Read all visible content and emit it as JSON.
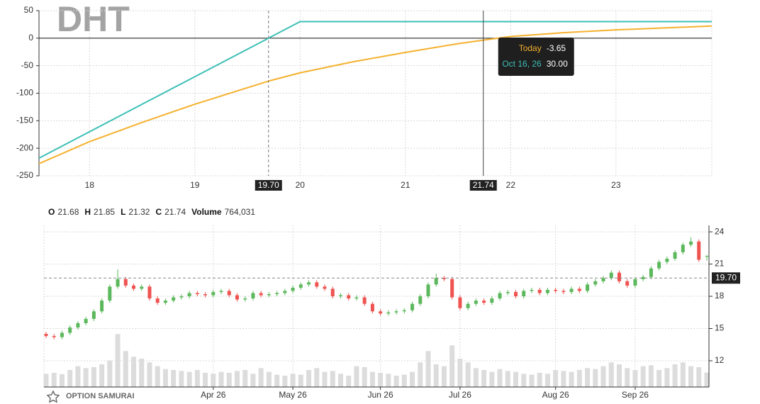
{
  "chart_data": [
    {
      "type": "line",
      "title": "DHT",
      "x": [
        17.52,
        18,
        18.5,
        19,
        19.7,
        20,
        20.5,
        21,
        21.5,
        21.74,
        22,
        22.5,
        23,
        23.5,
        23.91
      ],
      "series": [
        {
          "name": "Today",
          "color": "#f5b12e",
          "values": [
            -228,
            -188,
            -153,
            -120,
            -78,
            -63,
            -43,
            -26,
            -10,
            -3.65,
            3,
            10,
            15,
            19,
            22
          ]
        },
        {
          "name": "Oct 16, 26",
          "color": "#3dbfb6",
          "values": [
            -218,
            -170,
            -120,
            -70,
            0,
            30,
            30,
            30,
            30,
            30,
            30,
            30,
            30,
            30,
            30
          ]
        }
      ],
      "xlim": [
        17.52,
        23.91
      ],
      "ylim": [
        -250,
        50
      ],
      "xticks": [
        18,
        19,
        20,
        21,
        22,
        23
      ],
      "yticks": [
        50,
        0,
        -50,
        -100,
        -150,
        -200,
        -250
      ],
      "grid": true,
      "markers": [
        {
          "value": 19.7,
          "label": "19.70",
          "style": "dashed"
        },
        {
          "value": 21.74,
          "label": "21.74",
          "style": "solid"
        }
      ],
      "tooltip": [
        {
          "value": -3.65,
          "label": "-3.65"
        },
        {
          "value": 30,
          "label": "30.00"
        }
      ]
    },
    {
      "type": "candlestick",
      "readout": [
        {
          "label": "O",
          "value": 21.68
        },
        {
          "label": "H",
          "value": 21.85
        },
        {
          "label": "L",
          "value": 21.32
        },
        {
          "label": "C",
          "value": 21.74
        },
        {
          "label": "Volume",
          "value": "764,031"
        }
      ],
      "categories": [
        null,
        null,
        null,
        null,
        null,
        null,
        null,
        null,
        null,
        null,
        null,
        null,
        null,
        null,
        null,
        null,
        null,
        null,
        null,
        null,
        null,
        "Apr 26",
        null,
        null,
        null,
        null,
        null,
        null,
        null,
        null,
        null,
        "May 26",
        null,
        null,
        null,
        null,
        null,
        null,
        null,
        null,
        null,
        null,
        "Jun 26",
        null,
        null,
        null,
        null,
        null,
        null,
        null,
        null,
        null,
        "Jul 26",
        null,
        null,
        null,
        null,
        null,
        null,
        null,
        null,
        null,
        null,
        null,
        "Aug 26",
        null,
        null,
        null,
        null,
        null,
        null,
        null,
        null,
        null,
        "Sep 26",
        null,
        null,
        null,
        null,
        null,
        null,
        null,
        null,
        null
      ],
      "open": [
        14.5,
        14.3,
        14.2,
        14.6,
        15.1,
        15.5,
        15.9,
        16.6,
        17.6,
        18.9,
        19.6,
        19.0,
        18.7,
        18.9,
        17.8,
        17.4,
        17.6,
        17.9,
        18.0,
        18.3,
        18.2,
        18.1,
        18.4,
        18.5,
        18.1,
        17.7,
        17.8,
        18.3,
        18.1,
        18.2,
        18.3,
        18.5,
        18.8,
        19.1,
        19.3,
        18.9,
        18.7,
        18.0,
        18.1,
        17.8,
        17.9,
        17.3,
        16.6,
        16.4,
        16.5,
        16.6,
        16.7,
        17.3,
        18.0,
        19.1,
        19.7,
        19.6,
        17.9,
        16.9,
        17.3,
        17.6,
        17.4,
        17.8,
        18.3,
        18.4,
        18.0,
        18.5,
        18.6,
        18.3,
        18.6,
        18.5,
        18.4,
        18.7,
        18.5,
        19.1,
        19.4,
        19.7,
        20.2,
        19.4,
        19.0,
        19.6,
        19.8,
        20.6,
        21.2,
        21.5,
        22.1,
        22.8,
        23.1,
        21.68
      ],
      "high": [
        14.7,
        14.5,
        14.8,
        15.3,
        15.7,
        16.1,
        16.8,
        17.8,
        19.1,
        20.5,
        19.8,
        19.2,
        19.1,
        19.1,
        18.0,
        17.8,
        18.1,
        18.2,
        18.5,
        18.5,
        18.4,
        18.6,
        18.7,
        18.7,
        18.3,
        18.0,
        18.5,
        18.5,
        18.4,
        18.5,
        18.7,
        19.0,
        19.3,
        19.5,
        19.5,
        19.1,
        18.9,
        18.3,
        18.3,
        18.1,
        18.1,
        17.5,
        16.8,
        16.7,
        16.8,
        16.9,
        17.5,
        18.2,
        19.3,
        20.1,
        19.9,
        19.8,
        18.1,
        17.5,
        17.8,
        17.8,
        18.0,
        18.5,
        18.6,
        18.6,
        18.7,
        18.8,
        18.8,
        18.8,
        18.8,
        18.7,
        18.9,
        18.9,
        19.3,
        19.6,
        19.9,
        20.4,
        20.4,
        19.6,
        19.8,
        20.0,
        20.8,
        21.4,
        21.7,
        22.3,
        23.0,
        23.5,
        23.3,
        21.85
      ],
      "low": [
        14.1,
        14.0,
        14.0,
        14.4,
        14.9,
        15.3,
        15.7,
        16.4,
        17.4,
        18.7,
        18.8,
        18.5,
        18.5,
        17.6,
        17.2,
        17.2,
        17.4,
        17.7,
        17.8,
        18.0,
        17.9,
        17.9,
        18.2,
        17.9,
        17.5,
        17.5,
        17.6,
        17.9,
        17.9,
        18.0,
        18.1,
        18.3,
        18.6,
        18.9,
        18.7,
        18.5,
        17.8,
        17.8,
        17.6,
        17.6,
        17.1,
        16.4,
        16.2,
        16.2,
        16.3,
        16.4,
        16.5,
        17.1,
        17.8,
        18.9,
        19.4,
        17.7,
        16.7,
        16.7,
        17.1,
        17.2,
        17.2,
        17.6,
        18.1,
        17.8,
        17.8,
        18.3,
        18.1,
        18.1,
        18.3,
        18.2,
        18.2,
        18.3,
        18.3,
        18.9,
        19.2,
        19.5,
        19.2,
        18.8,
        18.8,
        19.4,
        19.6,
        20.4,
        21.0,
        21.3,
        21.9,
        22.6,
        21.2,
        21.32
      ],
      "close": [
        14.3,
        14.2,
        14.6,
        15.1,
        15.5,
        15.9,
        16.6,
        17.6,
        18.9,
        19.6,
        19.0,
        18.7,
        18.9,
        17.8,
        17.4,
        17.6,
        17.9,
        18.0,
        18.3,
        18.2,
        18.1,
        18.4,
        18.5,
        18.1,
        17.7,
        17.8,
        18.3,
        18.1,
        18.2,
        18.3,
        18.5,
        18.8,
        19.1,
        19.3,
        18.9,
        18.7,
        18.0,
        18.1,
        17.8,
        17.9,
        17.3,
        16.6,
        16.4,
        16.5,
        16.6,
        16.7,
        17.3,
        18.0,
        19.1,
        19.7,
        19.6,
        17.9,
        16.9,
        17.3,
        17.6,
        17.4,
        17.8,
        18.3,
        18.4,
        18.0,
        18.5,
        18.6,
        18.3,
        18.6,
        18.5,
        18.4,
        18.7,
        18.5,
        19.1,
        19.4,
        19.7,
        20.2,
        19.4,
        19.0,
        19.6,
        19.8,
        20.6,
        21.2,
        21.5,
        22.1,
        22.8,
        23.1,
        21.4,
        21.74
      ],
      "volume": [
        700000,
        750000,
        680000,
        900000,
        1100000,
        1000000,
        1050000,
        1200000,
        1400000,
        2800000,
        1900000,
        1600000,
        1500000,
        1300000,
        1100000,
        950000,
        900000,
        850000,
        800000,
        900000,
        750000,
        700000,
        800000,
        750000,
        850000,
        900000,
        700000,
        1000000,
        800000,
        650000,
        600000,
        700000,
        650000,
        900000,
        1000000,
        800000,
        850000,
        700000,
        600000,
        1100000,
        1050000,
        800000,
        750000,
        700000,
        600000,
        650000,
        800000,
        1300000,
        1900000,
        1200000,
        1100000,
        2200000,
        1500000,
        1300000,
        1000000,
        900000,
        800000,
        950000,
        850000,
        800000,
        700000,
        650000,
        750000,
        700000,
        900000,
        850000,
        800000,
        900000,
        1000000,
        950000,
        1100000,
        1300000,
        1200000,
        1000000,
        900000,
        1100000,
        1150000,
        900000,
        1000000,
        1200000,
        1300000,
        1100000,
        1050000,
        764031
      ],
      "colors": {
        "up": "#5cb85c",
        "down": "#ef5350",
        "volume": "#dcdcdc"
      },
      "ylim": [
        9.56,
        24.6
      ],
      "yticks": [
        12,
        15,
        18,
        21,
        24
      ],
      "volume_lim": [
        0,
        3000000
      ],
      "reference_line": {
        "value": 19.7,
        "label": "19.70"
      },
      "grid": true
    }
  ],
  "brand": "OPTION SAMURAI"
}
